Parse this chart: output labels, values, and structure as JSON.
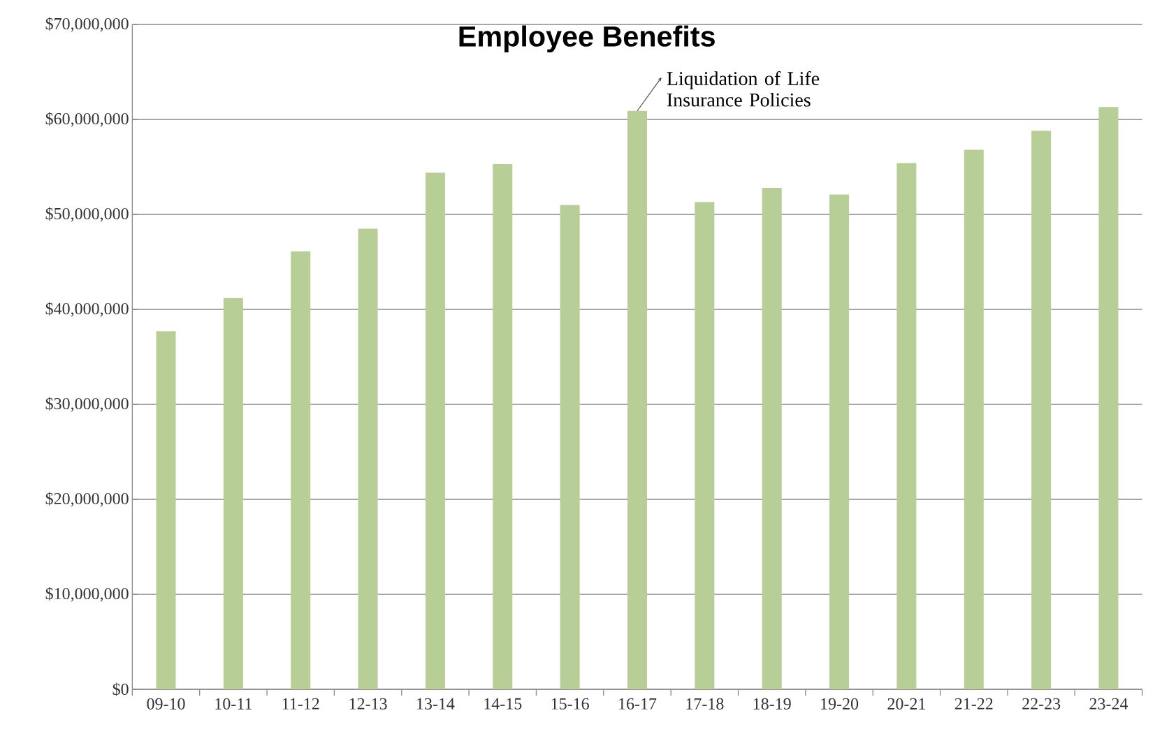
{
  "chart_data": {
    "type": "bar",
    "title": "Employee Benefits",
    "categories": [
      "09-10",
      "10-11",
      "11-12",
      "12-13",
      "13-14",
      "14-15",
      "15-16",
      "16-17",
      "17-18",
      "18-19",
      "19-20",
      "20-21",
      "21-22",
      "22-23",
      "23-24"
    ],
    "values": [
      37700000,
      41200000,
      46100000,
      48500000,
      54400000,
      55300000,
      51000000,
      60900000,
      51300000,
      52800000,
      52100000,
      55400000,
      56800000,
      58800000,
      61300000
    ],
    "color": "#b7cf96",
    "ylim": [
      0,
      70000000
    ],
    "yticks": [
      {
        "value": 0,
        "label": "$0"
      },
      {
        "value": 10000000,
        "label": "$10,000,000"
      },
      {
        "value": 20000000,
        "label": "$20,000,000"
      },
      {
        "value": 30000000,
        "label": "$30,000,000"
      },
      {
        "value": 40000000,
        "label": "$40,000,000"
      },
      {
        "value": 50000000,
        "label": "$50,000,000"
      },
      {
        "value": 60000000,
        "label": "$60,000,000"
      },
      {
        "value": 70000000,
        "label": "$70,000,000"
      }
    ],
    "grid": "y",
    "annotations": [
      {
        "text": "Liquidation of Life Insurance Policies",
        "x": "16-17",
        "y": 60900000
      }
    ]
  }
}
